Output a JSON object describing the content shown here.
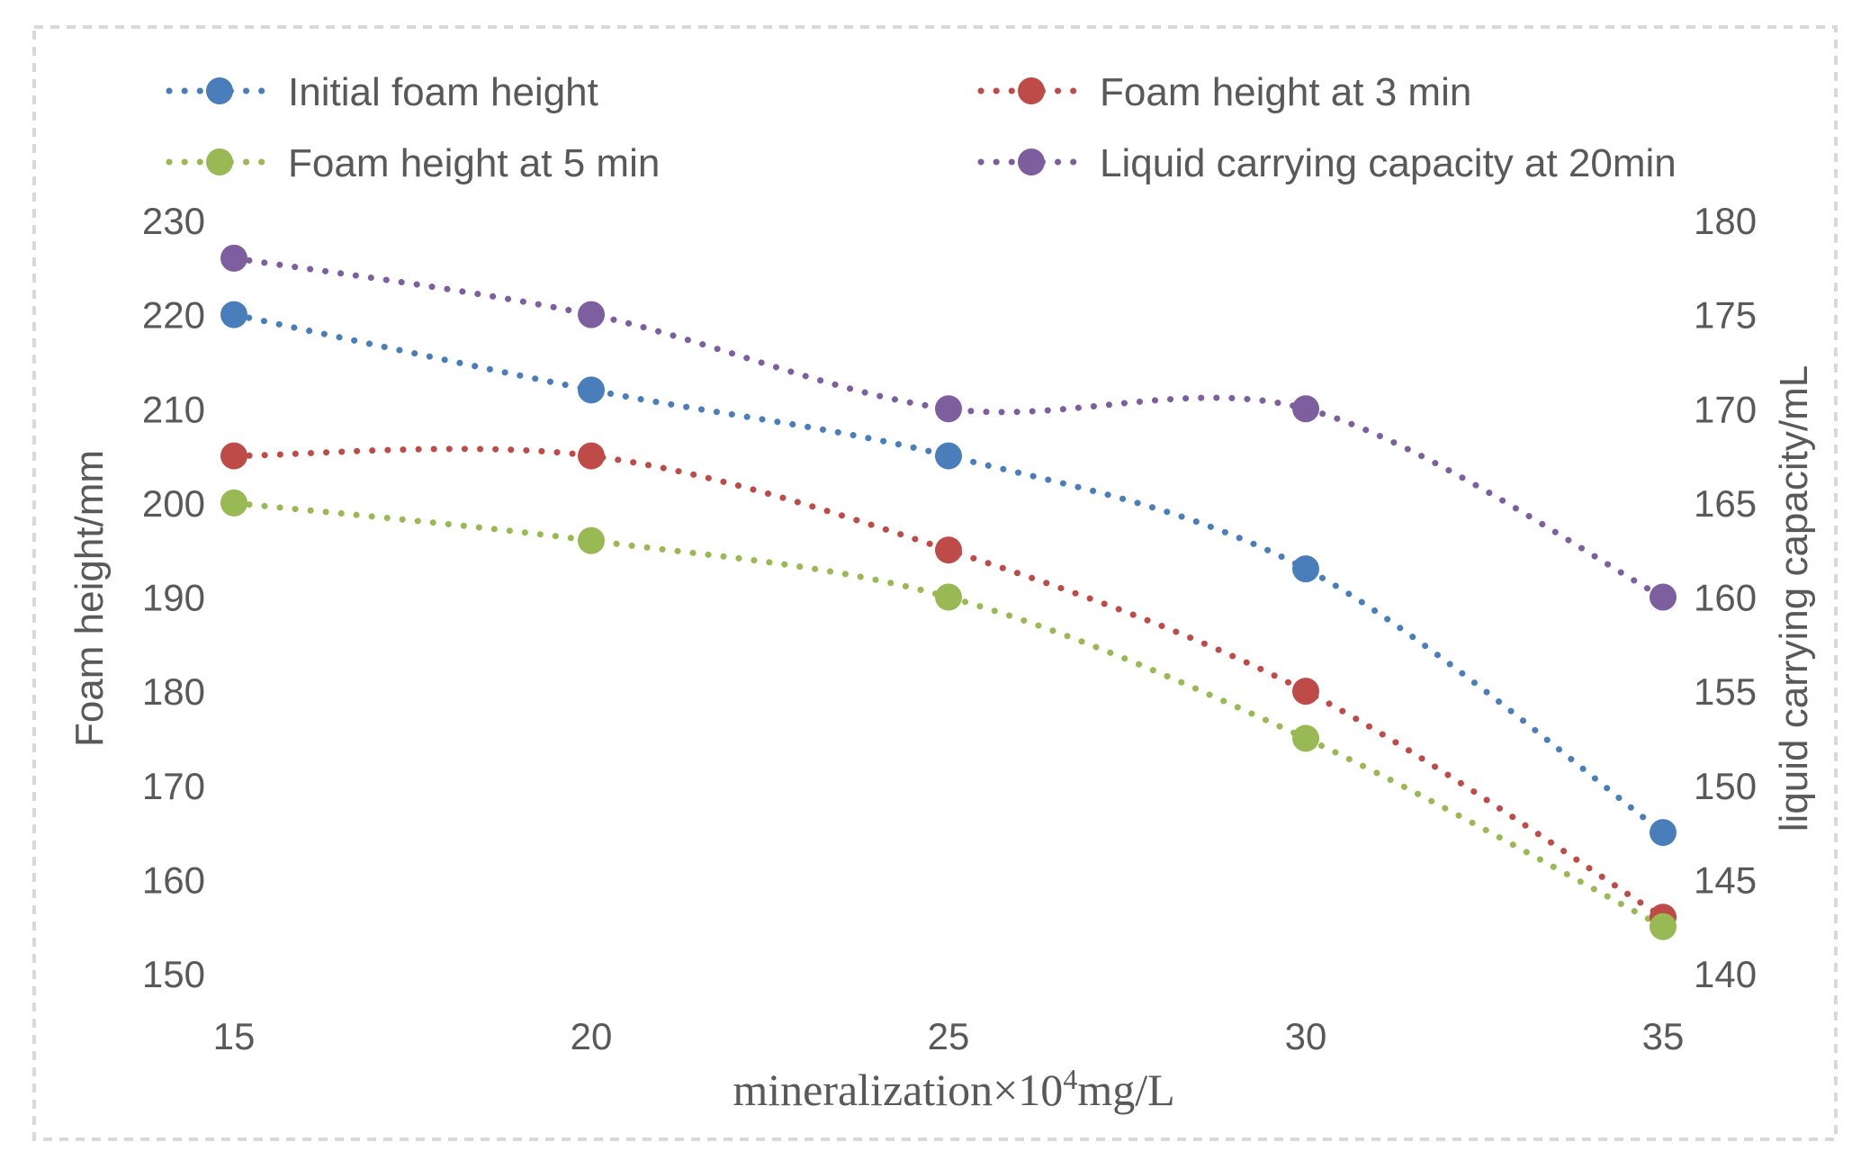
{
  "chart_data": {
    "type": "line",
    "title": "",
    "xlabel_main": "mineralization×10",
    "xlabel_sup": "4",
    "xlabel_unit": "mg/L",
    "ylabel": "Foam height/mm",
    "y2label": "liquid carrying capacity/mL",
    "x": [
      15,
      20,
      25,
      30,
      35
    ],
    "x_ticks": [
      "15",
      "20",
      "25",
      "30",
      "35"
    ],
    "xlim": [
      15,
      35
    ],
    "ylim": [
      150,
      230
    ],
    "y_ticks": [
      "230",
      "220",
      "210",
      "200",
      "190",
      "180",
      "170",
      "160",
      "150"
    ],
    "y2lim": [
      140,
      180
    ],
    "y2_ticks": [
      "180",
      "175",
      "170",
      "165",
      "160",
      "155",
      "150",
      "145",
      "140"
    ],
    "grid": false,
    "legend_position": "top",
    "series": [
      {
        "name": "Initial foam height",
        "axis": "left",
        "color": "#4a7ebb",
        "values": [
          220,
          212,
          205,
          193,
          165
        ]
      },
      {
        "name": "Foam height at 3 min",
        "axis": "left",
        "color": "#be4b48",
        "values": [
          205,
          205,
          195,
          180,
          156
        ]
      },
      {
        "name": "Foam height at 5 min",
        "axis": "left",
        "color": "#98b954",
        "values": [
          200,
          196,
          190,
          175,
          155
        ]
      },
      {
        "name": "Liquid carrying capacity at 20min",
        "axis": "right",
        "color": "#7d5fa0",
        "values": [
          178,
          175,
          170,
          170,
          160
        ]
      }
    ]
  }
}
